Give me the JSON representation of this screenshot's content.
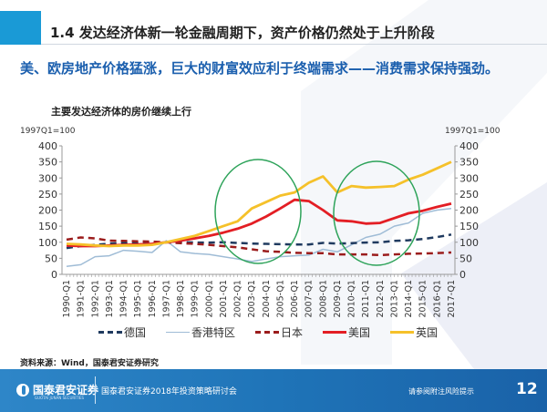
{
  "header": {
    "title": "1.4 发达经济体新一轮金融周期下，资产价格仍然处于上升阶段"
  },
  "subtitle": "美、欧房地产价格猛涨，巨大的财富效应利于终端需求——消费需求保持强劲。",
  "chart_data": {
    "type": "line",
    "title": "主要发达经济体的房价继续上行",
    "ylabel_left": "1997Q1=100",
    "ylabel_right": "1997Q1=100",
    "ylim": [
      0,
      400
    ],
    "yticks": [
      0,
      50,
      100,
      150,
      200,
      250,
      300,
      350,
      400
    ],
    "x": [
      "1990-Q1",
      "1991-Q1",
      "1992-Q1",
      "1993-Q1",
      "1994-Q1",
      "1995-Q1",
      "1996-Q1",
      "1997-Q1",
      "1998-Q1",
      "1999-Q1",
      "2000-Q1",
      "2001-Q1",
      "2002-Q1",
      "2003-Q1",
      "2004-Q1",
      "2005-Q1",
      "2006-Q1",
      "2007-Q1",
      "2008-Q1",
      "2009-Q1",
      "2010-Q1",
      "2011-Q1",
      "2012-Q1",
      "2013-Q1",
      "2014-Q1",
      "2015-Q1",
      "2016-Q1",
      "2017-Q1"
    ],
    "grid": false,
    "legend": "bottom",
    "series": [
      {
        "name": "德国",
        "color": "#1f3a5f",
        "dash": true,
        "values": [
          82,
          88,
          92,
          96,
          98,
          98,
          100,
          100,
          100,
          99,
          99,
          100,
          98,
          96,
          95,
          94,
          93,
          93,
          98,
          96,
          97,
          99,
          100,
          104,
          106,
          110,
          116,
          124
        ]
      },
      {
        "name": "香港特区",
        "color": "#9fbcd6",
        "dash": false,
        "values": [
          25,
          30,
          55,
          58,
          75,
          72,
          68,
          105,
          70,
          65,
          62,
          55,
          48,
          40,
          48,
          55,
          58,
          60,
          78,
          70,
          92,
          115,
          125,
          150,
          160,
          190,
          200,
          205
        ]
      },
      {
        "name": "日本",
        "color": "#9b1c1c",
        "dash": true,
        "values": [
          108,
          115,
          112,
          105,
          104,
          103,
          102,
          100,
          97,
          95,
          92,
          88,
          84,
          78,
          72,
          70,
          67,
          66,
          66,
          62,
          62,
          62,
          60,
          62,
          64,
          65,
          66,
          68
        ]
      },
      {
        "name": "美国",
        "color": "#e31e24",
        "dash": false,
        "values": [
          90,
          88,
          88,
          90,
          92,
          93,
          95,
          100,
          105,
          112,
          120,
          130,
          142,
          158,
          180,
          205,
          232,
          228,
          200,
          168,
          165,
          158,
          160,
          175,
          190,
          198,
          210,
          220
        ]
      },
      {
        "name": "英国",
        "color": "#f5c12a",
        "dash": false,
        "values": [
          95,
          93,
          90,
          88,
          90,
          90,
          92,
          100,
          110,
          120,
          135,
          150,
          165,
          205,
          225,
          245,
          255,
          285,
          305,
          255,
          275,
          270,
          272,
          275,
          295,
          310,
          330,
          350
        ]
      }
    ]
  },
  "source": "资料来源：Wind，国泰君安证券研究",
  "footer": {
    "logo_text": "国泰君安证券",
    "logo_subtext": "GUOTAI JUNAN SECURITIES",
    "conference": "国泰君安证券2018年投资策略研讨会",
    "disclaimer": "请参阅附注风险提示",
    "page_number": "12"
  }
}
